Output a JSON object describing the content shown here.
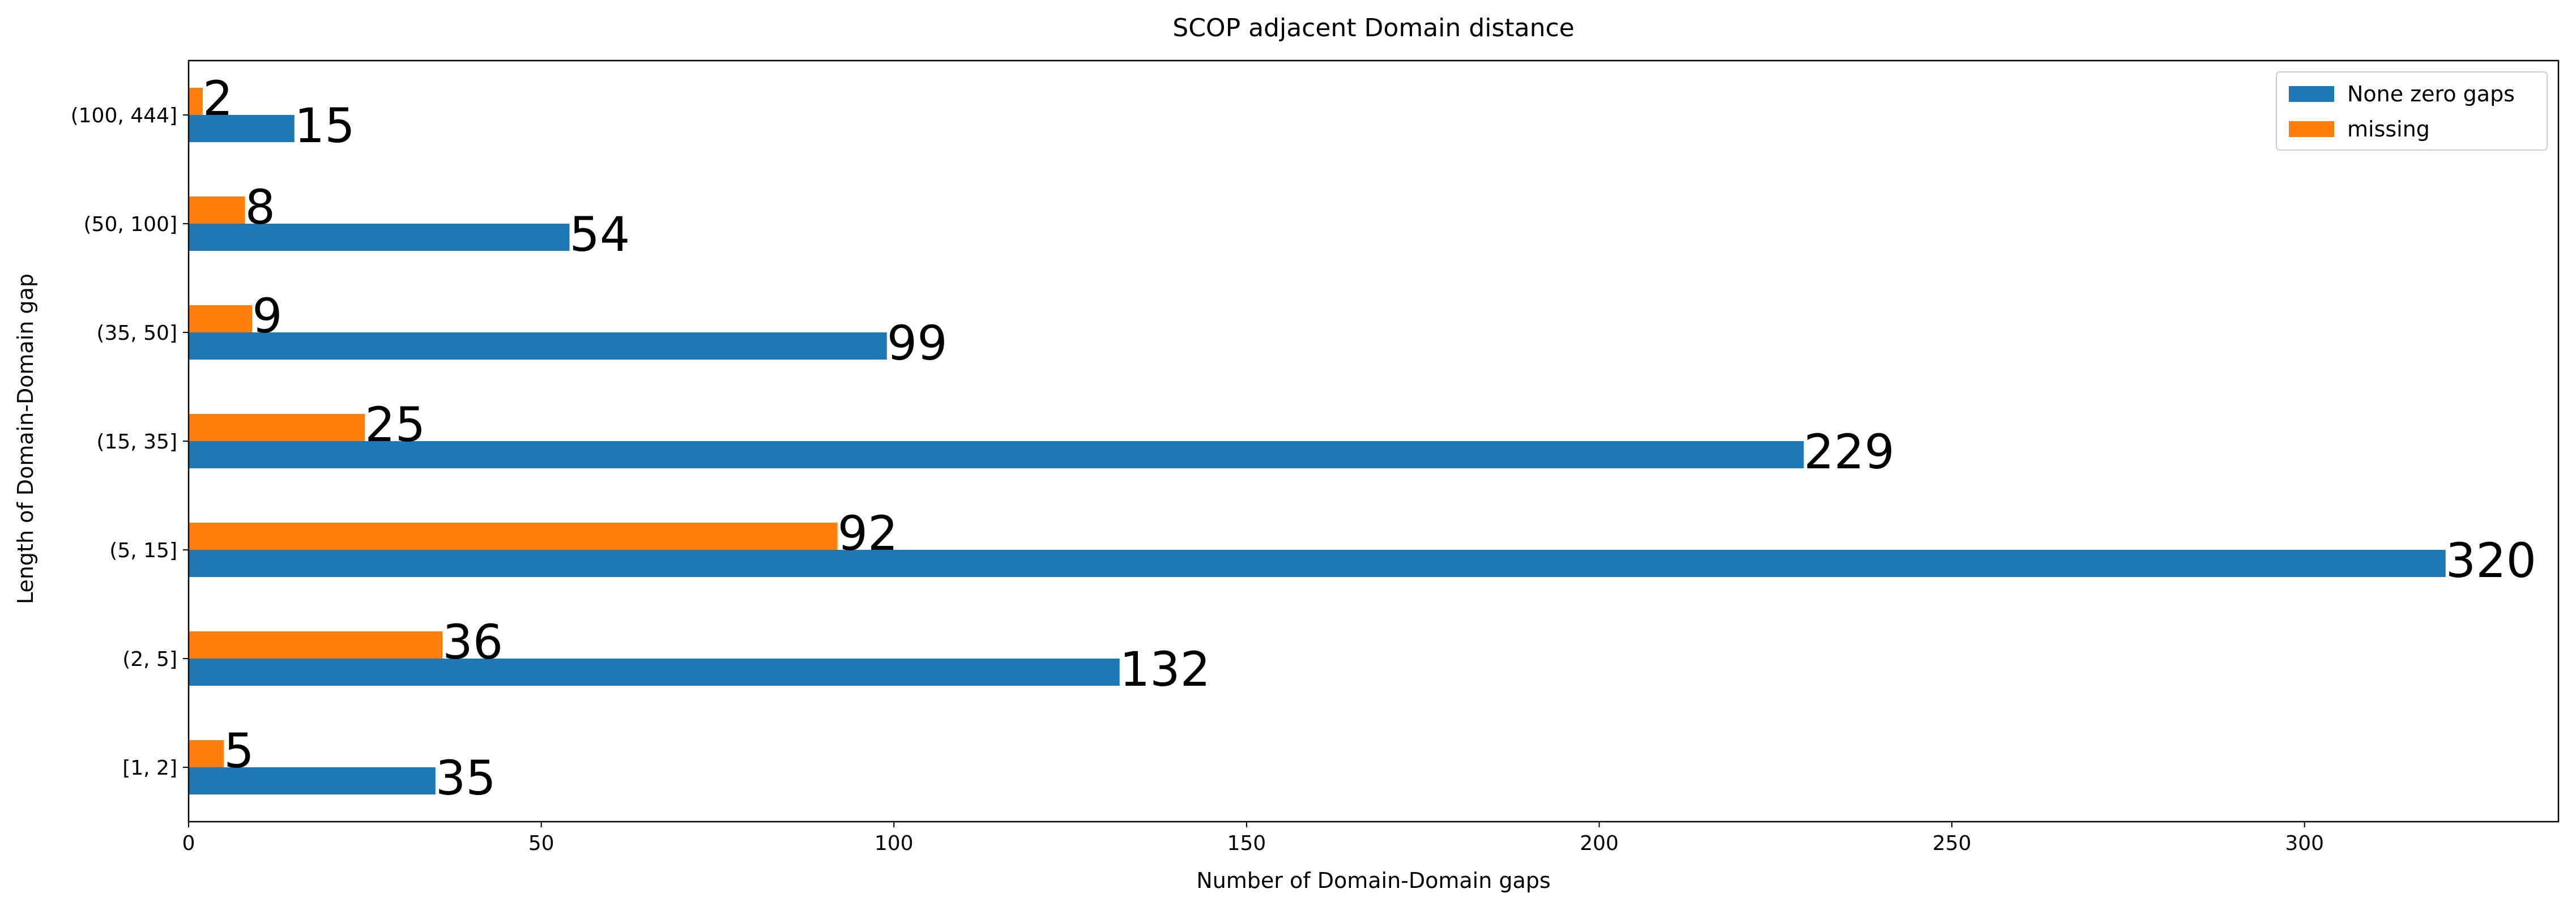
{
  "chart_data": {
    "type": "bar",
    "orientation": "horizontal",
    "title": "SCOP adjacent Domain distance",
    "xlabel": "Number of Domain-Domain gaps",
    "ylabel": "Length of Domain-Domain gap",
    "categories": [
      "[1, 2]",
      "(2, 5]",
      "(5, 15]",
      "(15, 35]",
      "(35, 50]",
      "(50, 100]",
      "(100, 444]"
    ],
    "series": [
      {
        "name": "None zero gaps",
        "color": "#1f77b4",
        "values": [
          35,
          132,
          320,
          229,
          99,
          54,
          15
        ]
      },
      {
        "name": "missing",
        "color": "#ff7f0e",
        "values": [
          5,
          36,
          92,
          25,
          9,
          8,
          2
        ]
      }
    ],
    "xlim": [
      0,
      336
    ],
    "xticks": [
      0,
      50,
      100,
      150,
      200,
      250,
      300
    ],
    "grid": false,
    "legend_position": "top-right"
  }
}
